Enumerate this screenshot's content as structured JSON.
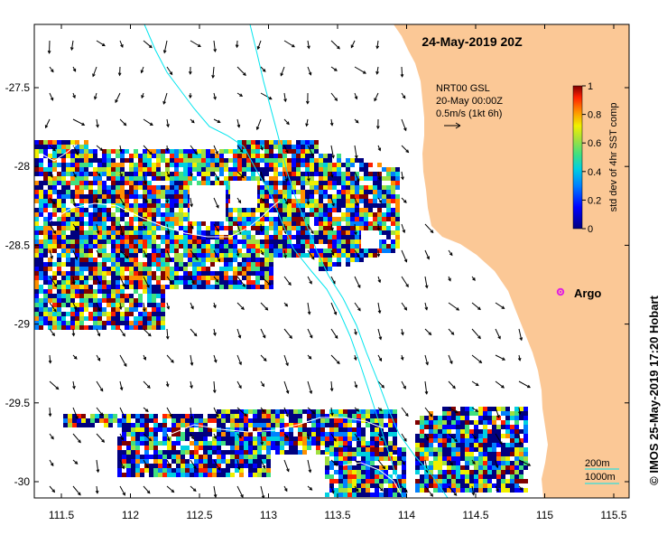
{
  "title": "24-May-2019 20Z",
  "vectors_info": {
    "product": "NRT00 GSL",
    "date": "20-May 00:00Z",
    "scale": "0.5m/s (1kt 6h)"
  },
  "colorbar": {
    "label": "std dev of 4hr SST comp",
    "tick_labels": [
      "1",
      "0.8",
      "0.6",
      "0.4",
      "0.2",
      "0"
    ],
    "range": [
      0,
      1
    ],
    "colors": [
      "#00007f",
      "#0000ff",
      "#0080ff",
      "#00d0e0",
      "#40e080",
      "#a0e040",
      "#f0f000",
      "#ff9000",
      "#ff2000",
      "#800000"
    ]
  },
  "axes": {
    "x_ticks": [
      "111.5",
      "112",
      "112.5",
      "113",
      "113.5",
      "114",
      "114.5",
      "115",
      "115.5"
    ],
    "y_ticks": [
      "-27.5",
      "-28",
      "-28.5",
      "-29",
      "-29.5",
      "-30"
    ],
    "lon_range": [
      111.3,
      115.65
    ],
    "lat_range": [
      -27.1,
      -30.1
    ]
  },
  "marker": {
    "label": "Argo",
    "lon": 115.12,
    "lat": -28.85,
    "color": "#e020e0"
  },
  "bathymetry": {
    "label_200": "200m",
    "label_1000": "1000m",
    "color": "#00e5ee"
  },
  "credit": "© IMOS 25-May-2019 17:20 Hobart",
  "land_color": "#fbc896"
}
